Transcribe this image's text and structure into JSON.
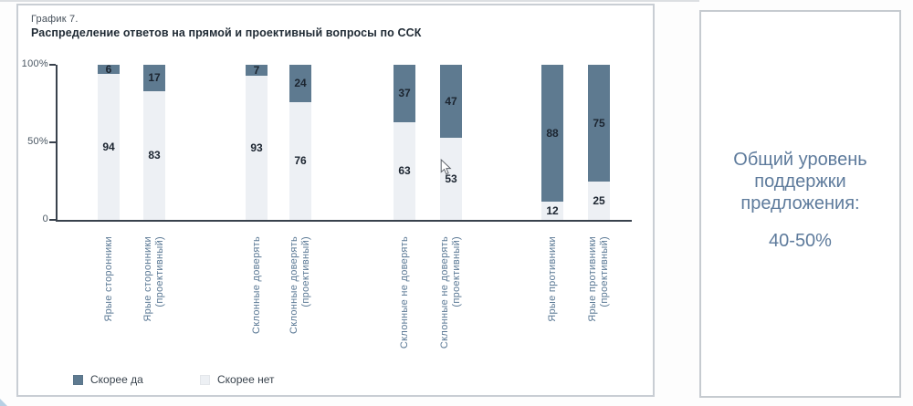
{
  "main_card": {
    "caption": "График 7.",
    "title": "Распределение ответов на прямой и проективный вопросы по ССК"
  },
  "chart_data": {
    "type": "bar",
    "stacked": true,
    "orientation": "vertical",
    "title": "Распределение ответов на прямой и проективный вопросы по ССК",
    "categories": [
      "Ярые сторонники",
      "Ярые сторонники\n(проективный)",
      "Склонные доверять",
      "Склонные доверять\n(проективный)",
      "Склонные не доверять",
      "Склонные не доверять\n(проективный)",
      "Ярые противники",
      "Ярые противники\n(проективный)"
    ],
    "series": [
      {
        "name": "Скорее да",
        "color": "#5e7a90",
        "values": [
          6,
          17,
          7,
          24,
          37,
          47,
          88,
          75
        ]
      },
      {
        "name": "Скорее нет",
        "color": "#edf0f4",
        "values": [
          94,
          83,
          93,
          76,
          63,
          53,
          12,
          25
        ]
      }
    ],
    "stack_order": "top-to-bottom",
    "value_labels": true,
    "ylim": [
      0,
      100
    ],
    "yticks": [
      {
        "value": 100,
        "label": "100%"
      },
      {
        "value": 50,
        "label": "50%"
      },
      {
        "value": 0,
        "label": "0"
      }
    ],
    "grid": false,
    "legend_position": "bottom"
  },
  "side_card": {
    "text": "Общий уровень\nподдержки\nпредложения:",
    "value": "40-50%"
  }
}
